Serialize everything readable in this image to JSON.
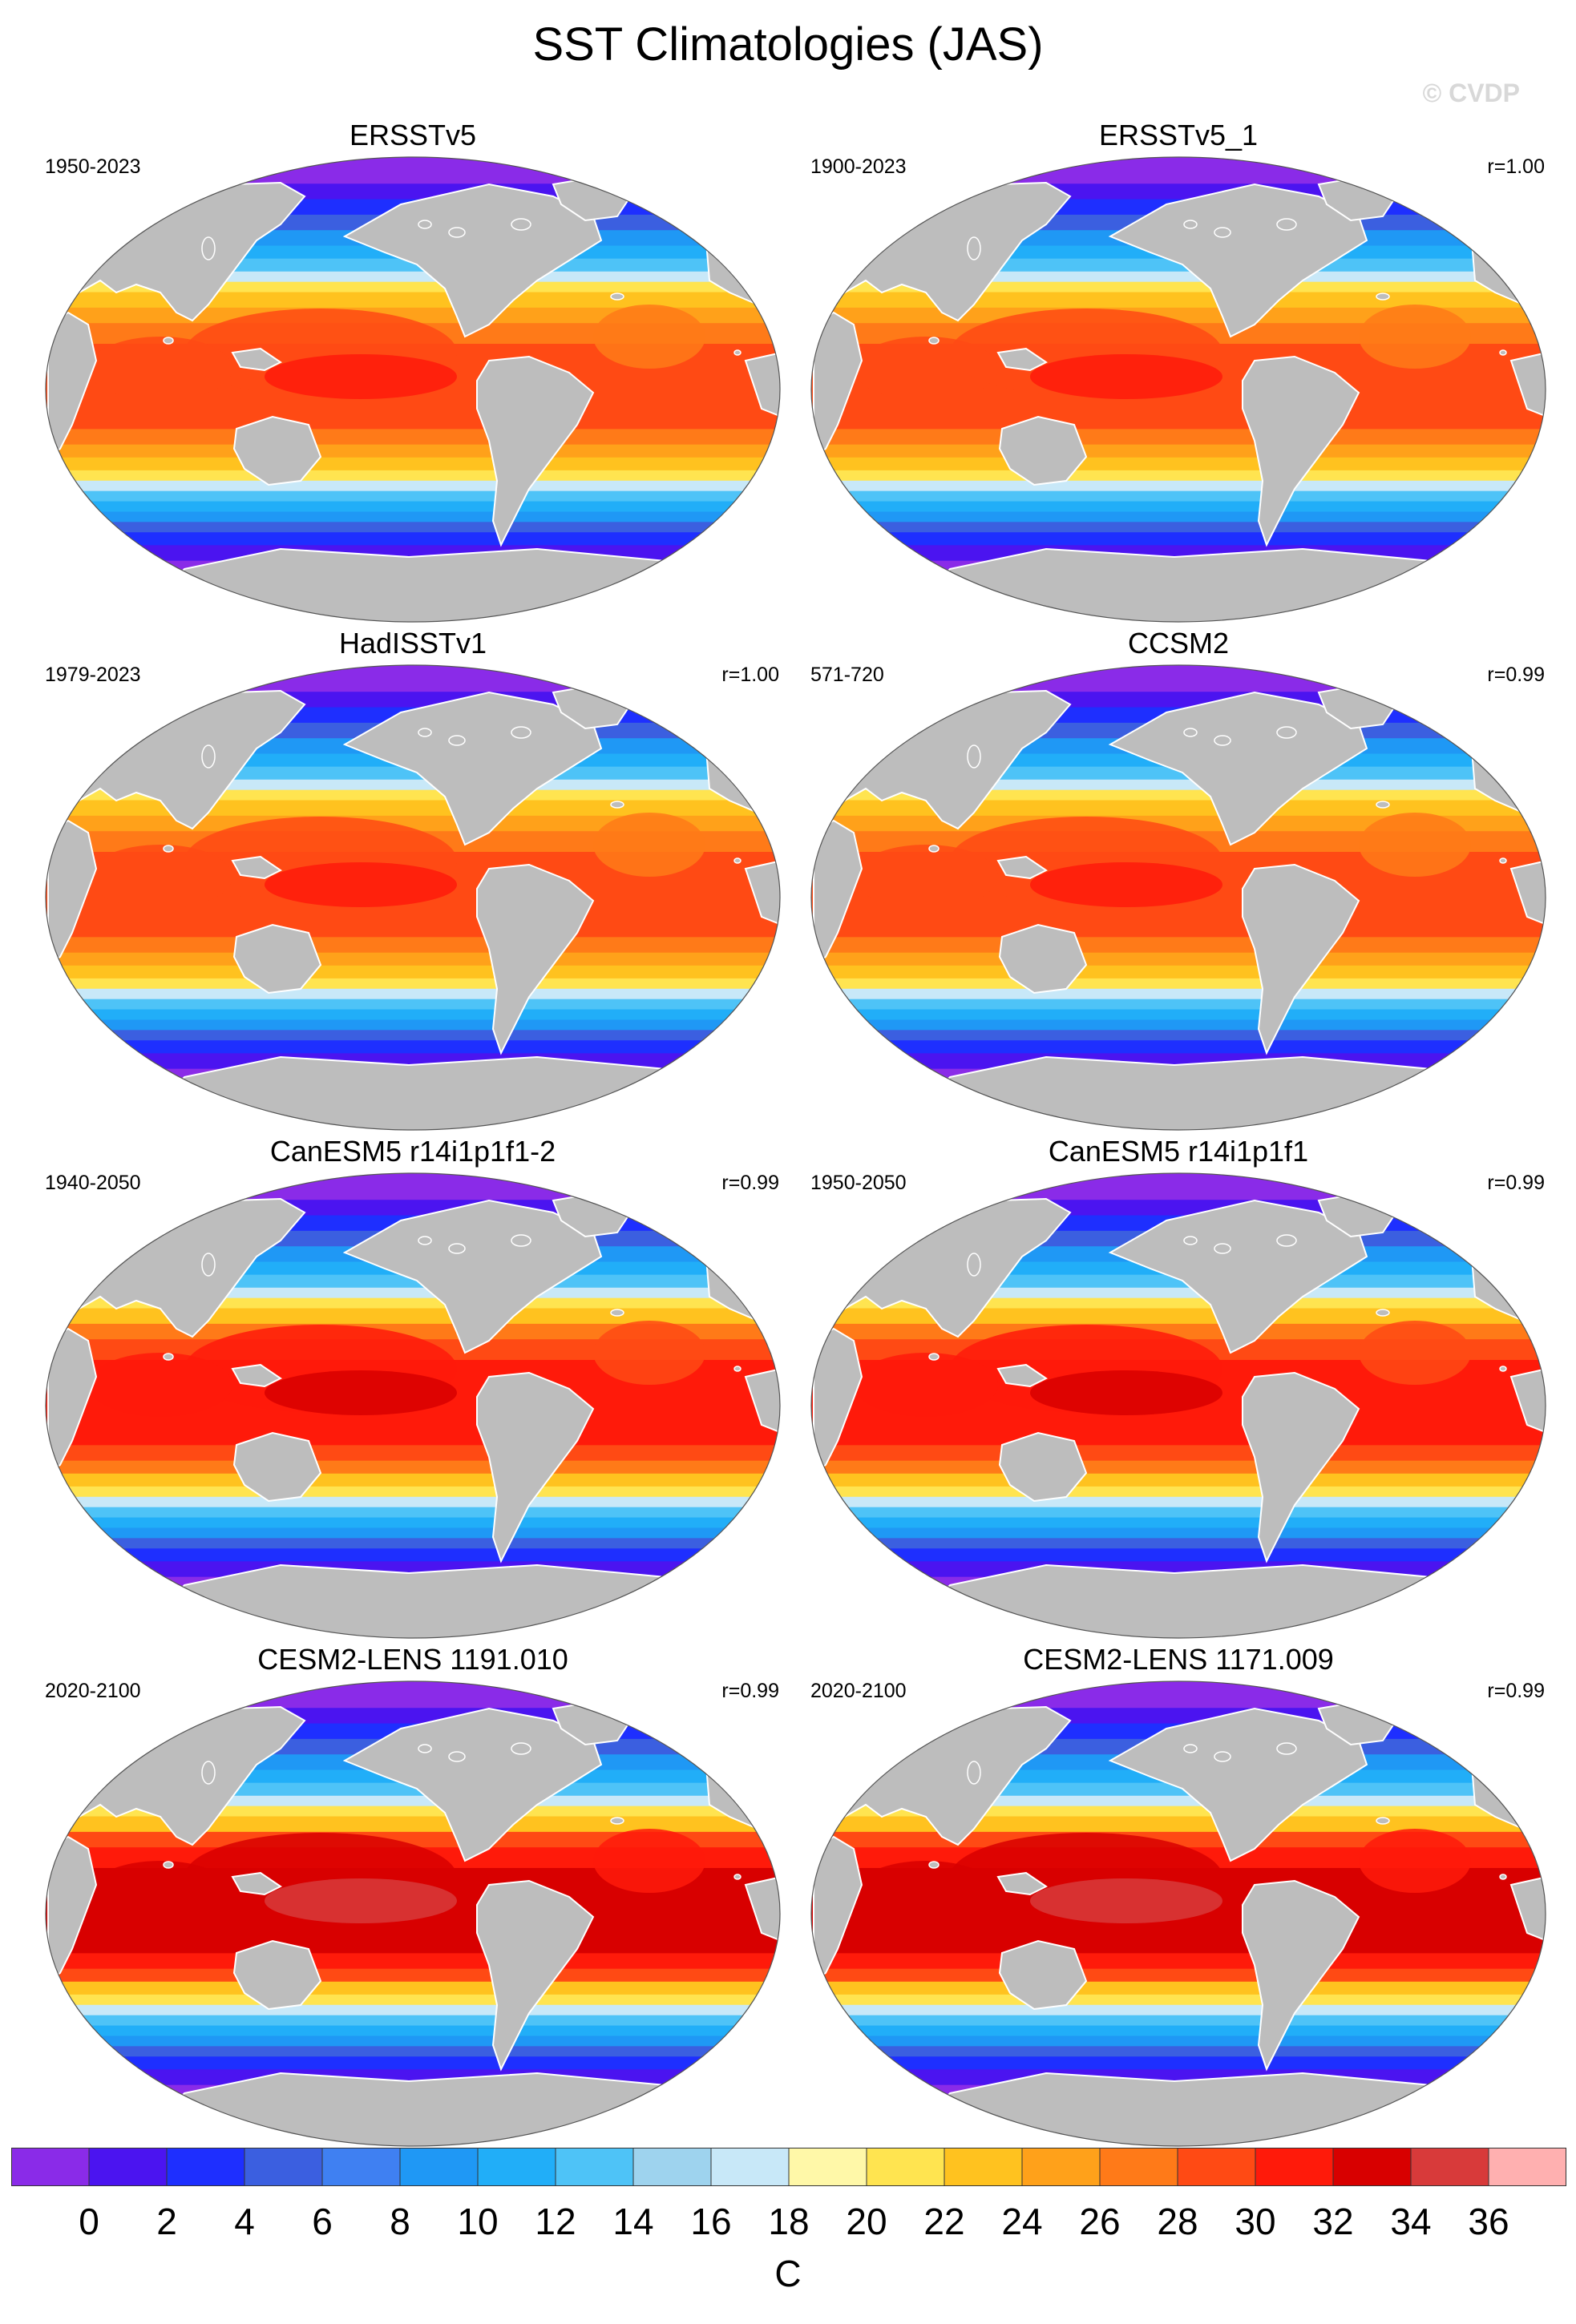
{
  "title": "SST Climatologies (JAS)",
  "credit": "© CVDP",
  "panels": [
    {
      "name": "ERSSTv5",
      "years": "1950-2023",
      "corr": "",
      "warm": 0.0
    },
    {
      "name": "ERSSTv5_1",
      "years": "1900-2023",
      "corr": "r=1.00",
      "warm": 0.0
    },
    {
      "name": "HadISSTv1",
      "years": "1979-2023",
      "corr": "r=1.00",
      "warm": 0.1
    },
    {
      "name": "CCSM2",
      "years": "571-720",
      "corr": "r=0.99",
      "warm": 0.2
    },
    {
      "name": "CanESM5 r14i1p1f1-2",
      "years": "1940-2050",
      "corr": "r=0.99",
      "warm": 0.4
    },
    {
      "name": "CanESM5 r14i1p1f1",
      "years": "1950-2050",
      "corr": "r=0.99",
      "warm": 0.4
    },
    {
      "name": "CESM2-LENS 1191.010",
      "years": "2020-2100",
      "corr": "r=0.99",
      "warm": 0.8
    },
    {
      "name": "CESM2-LENS 1171.009",
      "years": "2020-2100",
      "corr": "r=0.99",
      "warm": 0.8
    }
  ],
  "colorbar": {
    "units": "C",
    "ticks": [
      "0",
      "2",
      "4",
      "6",
      "8",
      "10",
      "12",
      "14",
      "16",
      "18",
      "20",
      "22",
      "24",
      "26",
      "28",
      "30",
      "32",
      "34",
      "36"
    ],
    "colors": [
      "#8a2be8",
      "#4b14f0",
      "#1e2fff",
      "#3b5fe0",
      "#3f80f2",
      "#1f98f5",
      "#21aef8",
      "#4ec3f7",
      "#9ed3ee",
      "#c8e8f8",
      "#fff8a8",
      "#ffe450",
      "#ffc21f",
      "#ffa11a",
      "#ff7a18",
      "#ff4a14",
      "#ff1a0a",
      "#d80000",
      "#d83a3a",
      "#ffb0b0"
    ]
  }
}
